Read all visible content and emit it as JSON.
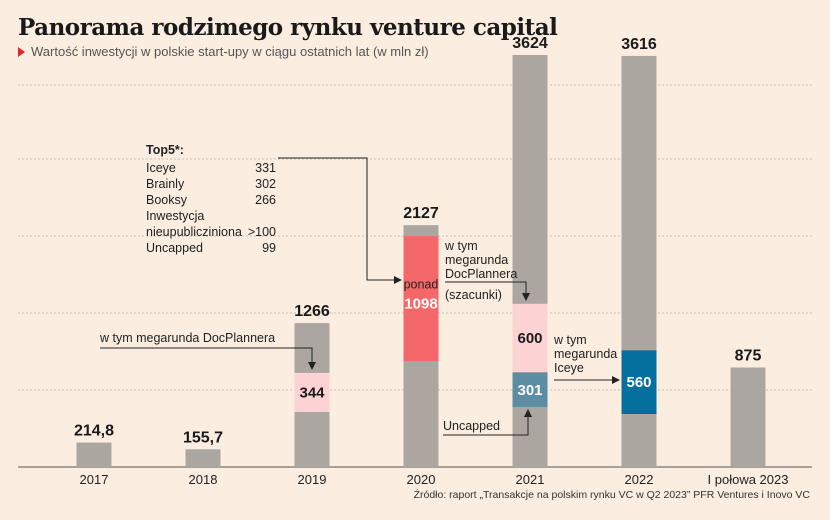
{
  "title": "Panorama rodzimego rynku venture capital",
  "subtitle": "Wartość inwestycji w polskie start-upy w ciągu ostatnich lat (w mln zł)",
  "source": "Źródło: raport „Transakcje na polskim rynku VC w Q2 2023” PFR Ventures i Inovo VC",
  "colors": {
    "background": "#fbede0",
    "bar": "#aca6a1",
    "docplanner": "#fdd2d3",
    "megaround_2020": "#f5686a",
    "uncapped": "#5d8da3",
    "iceye": "#05709e",
    "accent": "#e0262a"
  },
  "top5": {
    "heading": "Top5*:",
    "rows": [
      {
        "name": "Iceye",
        "value": "331"
      },
      {
        "name": "Brainly",
        "value": "302"
      },
      {
        "name": "Booksy",
        "value": "266"
      },
      {
        "name": "Inwestycja\nnieupublicziniona",
        "value": ">100"
      },
      {
        "name": "Uncapped",
        "value": "99"
      }
    ]
  },
  "annotations": {
    "docplanner_2019": "w tym megarunda DocPlannera",
    "docplanner_2021_lines": [
      "w tym",
      "megarunda",
      "DocPlannera",
      "(szacunki)"
    ],
    "iceye_2022_lines": [
      "w tym",
      "megarunda",
      "Iceye"
    ],
    "uncapped_2021": "Uncapped"
  },
  "chart_data": {
    "type": "bar",
    "categories": [
      "2017",
      "2018",
      "2019",
      "2020",
      "2021",
      "2022",
      "I połowa 2023"
    ],
    "totals": [
      214.8,
      155.7,
      1266,
      2127,
      3624,
      3616,
      875
    ],
    "total_labels": [
      "214,8",
      "155,7",
      "1266",
      "2127",
      "3624",
      "3616",
      "875"
    ],
    "ylim": [
      0,
      3700
    ],
    "grid": true,
    "segments": [
      {
        "category": "2019",
        "value": 344,
        "label": "344",
        "color_key": "docplanner"
      },
      {
        "category": "2020",
        "value": 1098,
        "prefix": "ponad",
        "label": "1098",
        "color_key": "megaround_2020"
      },
      {
        "category": "2021",
        "value": 600,
        "label": "600",
        "color_key": "docplanner"
      },
      {
        "category": "2021",
        "value": 301,
        "label": "301",
        "color_key": "uncapped"
      },
      {
        "category": "2022",
        "value": 560,
        "label": "560",
        "color_key": "iceye"
      }
    ]
  }
}
